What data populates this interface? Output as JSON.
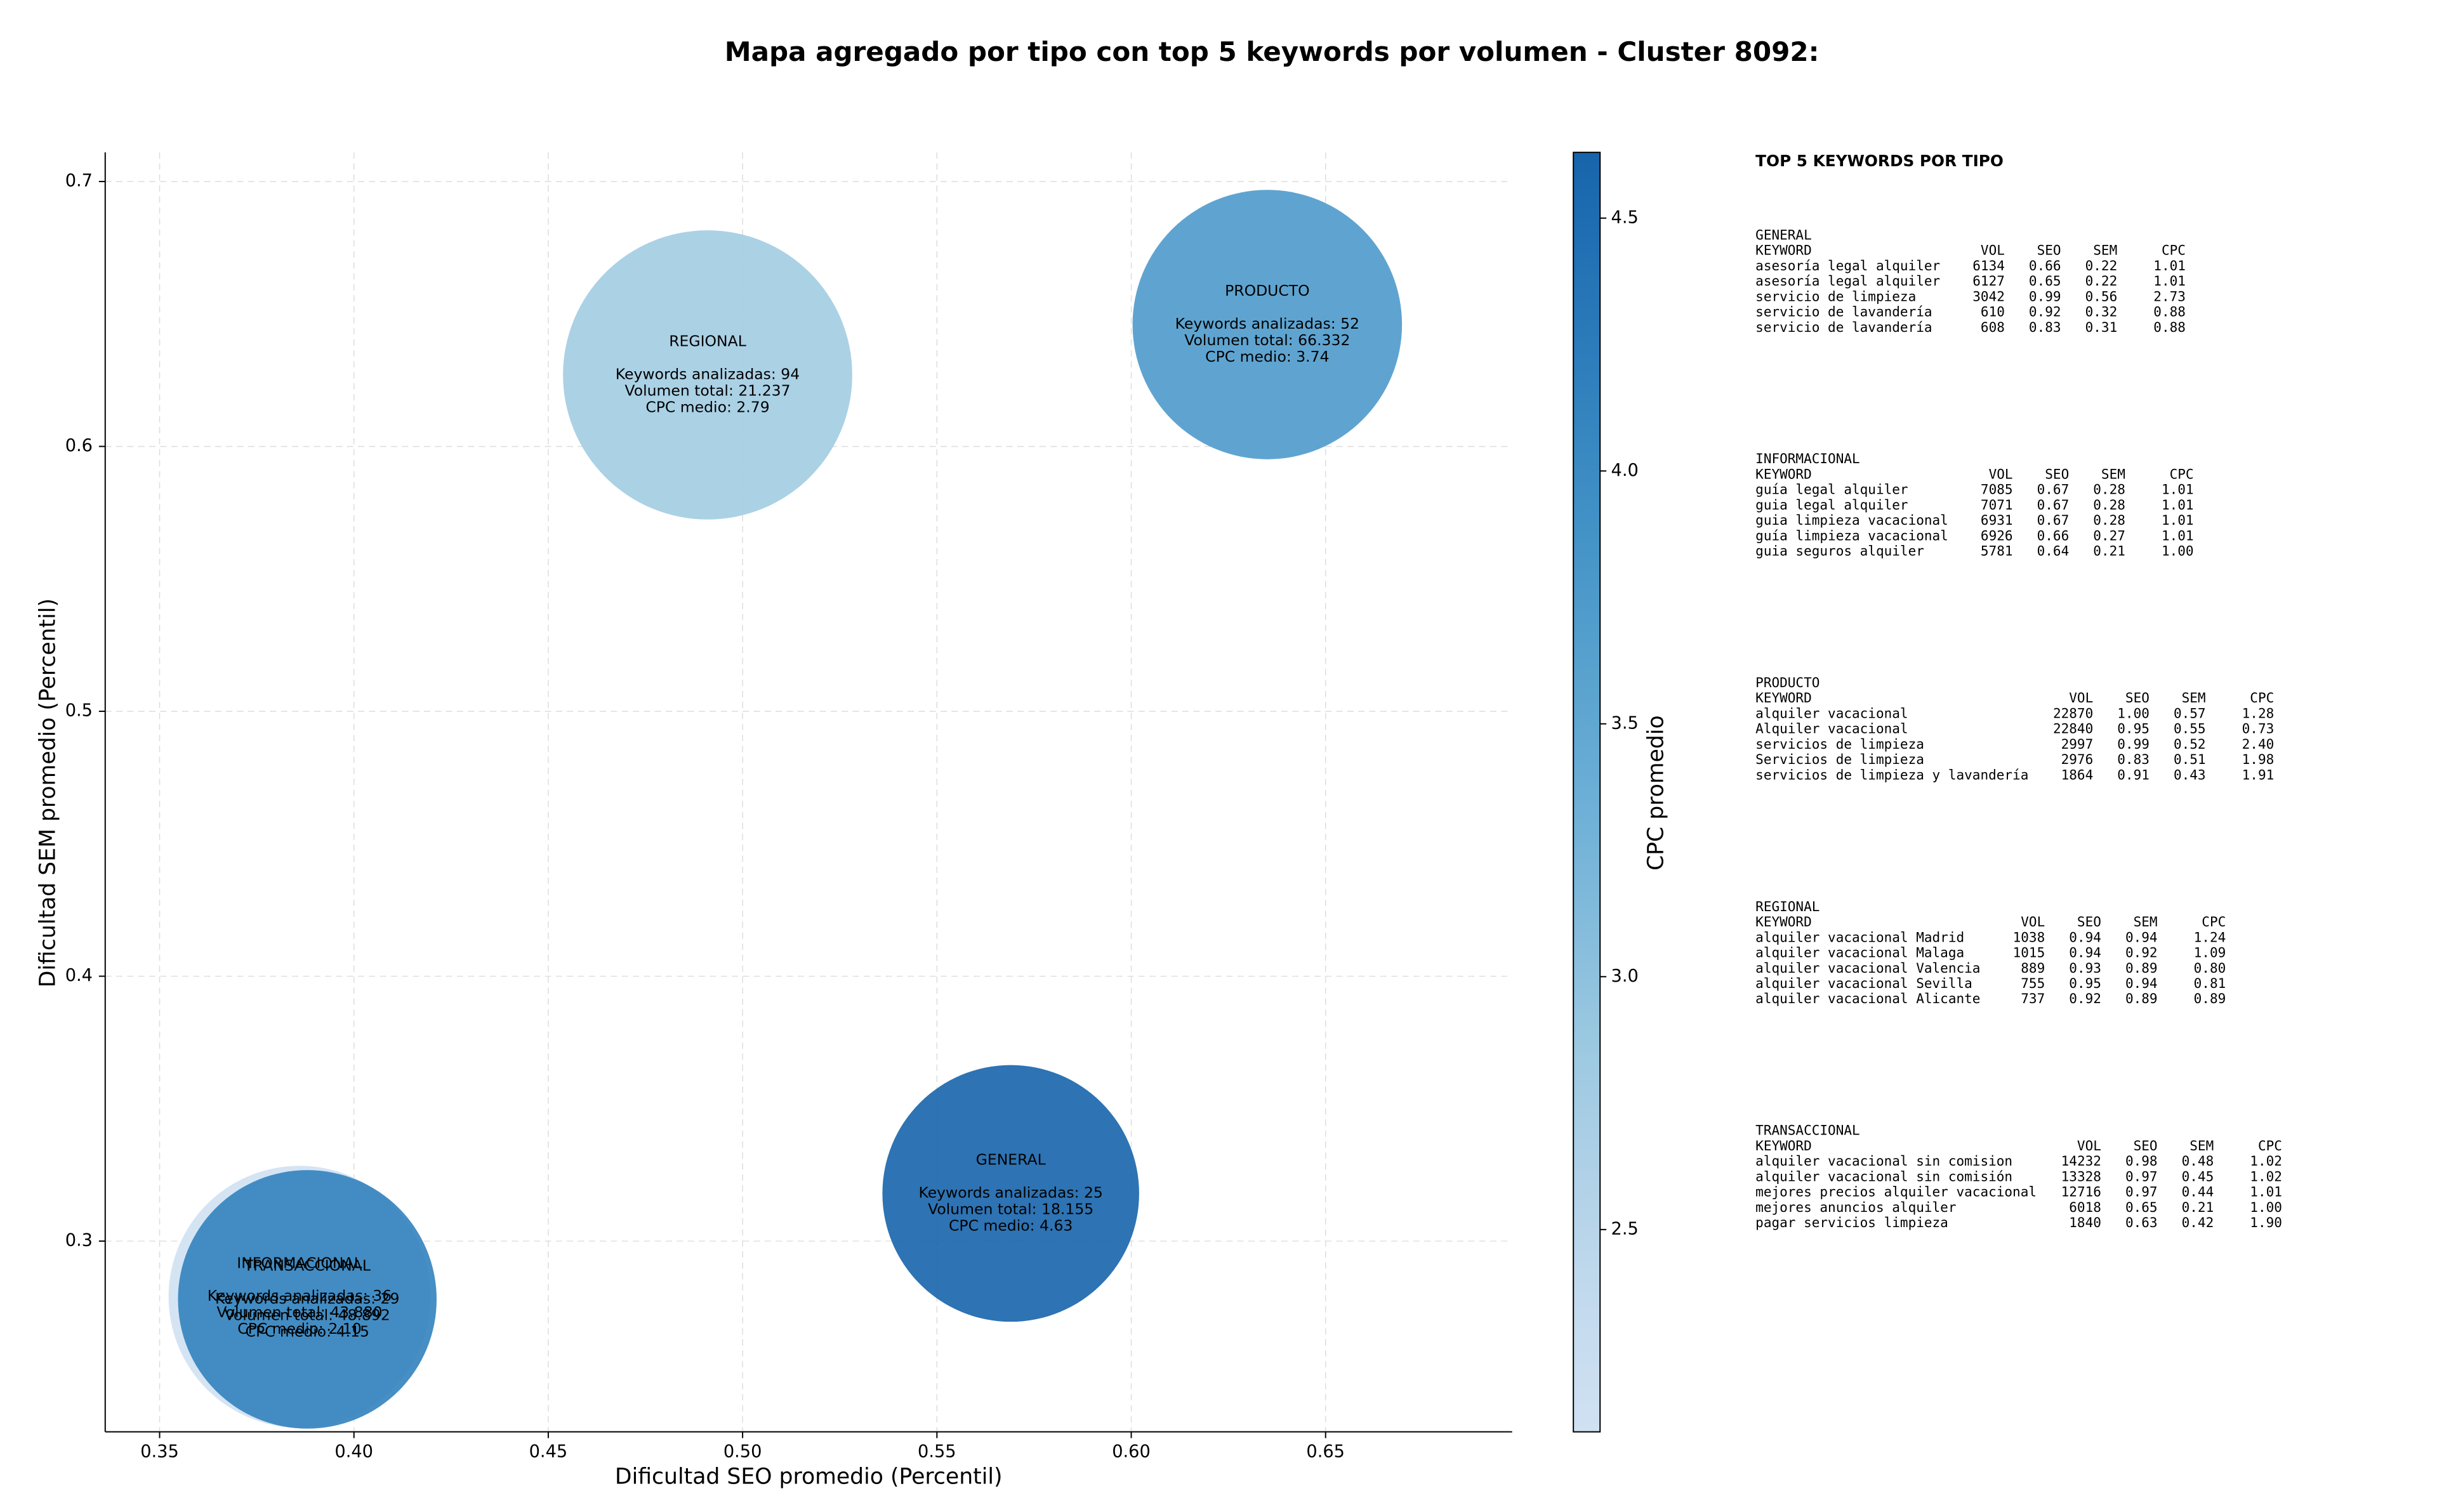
{
  "chart_data": {
    "type": "bubble",
    "title": "Mapa agregado por tipo con top 5 keywords por volumen - Cluster 8092:",
    "x_label": "Dificultad SEO promedio (Percentil)",
    "y_label": "Dificultad SEM promedio (Percentil)",
    "xlim": [
      0.336,
      0.698
    ],
    "ylim": [
      0.228,
      0.711
    ],
    "xticks": [
      0.35,
      {
        "value": 0.4,
        "label": "0.40"
      },
      0.45,
      {
        "value": 0.5,
        "label": "0.50"
      },
      0.55,
      {
        "value": 0.6,
        "label": "0.60"
      },
      0.65
    ],
    "yticks": [
      {
        "value": 0.3,
        "label": "0.3"
      },
      0.4,
      0.5,
      0.6,
      0.7
    ],
    "grid": true,
    "colormap": "Blues",
    "colorbar": {
      "label": "CPC promedio",
      "lim": [
        2.1,
        4.63
      ],
      "ticks": [
        2.5,
        {
          "value": 3,
          "label": "3.0"
        },
        3.5,
        {
          "value": 4,
          "label": "4.0"
        },
        4.5
      ]
    },
    "points": [
      {
        "name": "REGIONAL",
        "x": 0.491,
        "y": 0.627,
        "keywords": 94,
        "cpc": 2.79,
        "texts": [
          "Keywords analizadas: 94",
          "Volumen total: 21.237",
          "CPC medio: 2.79"
        ]
      },
      {
        "name": "PRODUCTO",
        "x": 0.635,
        "y": 0.646,
        "keywords": 52,
        "cpc": 3.74,
        "texts": [
          "Keywords analizadas: 52",
          "Volumen total: 66.332",
          "CPC medio: 3.74"
        ]
      },
      {
        "name": "GENERAL",
        "x": 0.569,
        "y": 0.318,
        "keywords": 25,
        "cpc": 4.63,
        "texts": [
          "Keywords analizadas: 25",
          "Volumen total: 18.155",
          "CPC medio: 4.63"
        ]
      },
      {
        "name": "INFORMACIONAL",
        "x": 0.386,
        "y": 0.279,
        "keywords": 36,
        "cpc": 2.1,
        "texts": [
          "Keywords analizadas: 36",
          "Volumen total: 43.880",
          "CPC medio: 2.10"
        ]
      },
      {
        "name": "TRANSACCIONAL",
        "x": 0.388,
        "y": 0.278,
        "keywords": 29,
        "cpc": 4.15,
        "texts": [
          "Keywords analizadas: 29",
          "Volumen total: 48.892",
          "CPC medio: 4.15"
        ]
      }
    ]
  },
  "side_panel": {
    "title": "TOP 5 KEYWORDS POR TIPO",
    "header": [
      "KEYWORD",
      "VOL",
      "SEO",
      "SEM",
      "CPC"
    ],
    "groups": [
      {
        "name": "GENERAL",
        "rows": [
          [
            "asesoría legal alquiler",
            "6134",
            "0.66",
            "0.22",
            "1.01"
          ],
          [
            "asesoría legal alquiler",
            "6127",
            "0.65",
            "0.22",
            "1.01"
          ],
          [
            "servicio de limpieza",
            "3042",
            "0.99",
            "0.56",
            "2.73"
          ],
          [
            "servicio de lavandería",
            "610",
            "0.92",
            "0.32",
            "0.88"
          ],
          [
            "servicio de lavandería",
            "608",
            "0.83",
            "0.31",
            "0.88"
          ]
        ]
      },
      {
        "name": "INFORMACIONAL",
        "rows": [
          [
            "guía legal alquiler",
            "7085",
            "0.67",
            "0.28",
            "1.01"
          ],
          [
            "guia legal alquiler",
            "7071",
            "0.67",
            "0.28",
            "1.01"
          ],
          [
            "guia limpieza vacacional",
            "6931",
            "0.67",
            "0.28",
            "1.01"
          ],
          [
            "guía limpieza vacacional",
            "6926",
            "0.66",
            "0.27",
            "1.01"
          ],
          [
            "guia seguros alquiler",
            "5781",
            "0.64",
            "0.21",
            "1.00"
          ]
        ]
      },
      {
        "name": "PRODUCTO",
        "rows": [
          [
            "alquiler vacacional",
            "22870",
            "1.00",
            "0.57",
            "1.28"
          ],
          [
            "Alquiler vacacional",
            "22840",
            "0.95",
            "0.55",
            "0.73"
          ],
          [
            "servicios de limpieza",
            "2997",
            "0.99",
            "0.52",
            "2.40"
          ],
          [
            "Servicios de limpieza",
            "2976",
            "0.83",
            "0.51",
            "1.98"
          ],
          [
            "servicios de limpieza y lavandería",
            "1864",
            "0.91",
            "0.43",
            "1.91"
          ]
        ]
      },
      {
        "name": "REGIONAL",
        "rows": [
          [
            "alquiler vacacional Madrid",
            "1038",
            "0.94",
            "0.94",
            "1.24"
          ],
          [
            "alquiler vacacional Malaga",
            "1015",
            "0.94",
            "0.92",
            "1.09"
          ],
          [
            "alquiler vacacional Valencia",
            "889",
            "0.93",
            "0.89",
            "0.80"
          ],
          [
            "alquiler vacacional Sevilla",
            "755",
            "0.95",
            "0.94",
            "0.81"
          ],
          [
            "alquiler vacacional Alicante",
            "737",
            "0.92",
            "0.89",
            "0.89"
          ]
        ]
      },
      {
        "name": "TRANSACCIONAL",
        "rows": [
          [
            "alquiler vacacional sin comision",
            "14232",
            "0.98",
            "0.48",
            "1.02"
          ],
          [
            "alquiler vacacional sin comisión",
            "13328",
            "0.97",
            "0.45",
            "1.02"
          ],
          [
            "mejores precios alquiler vacacional",
            "12716",
            "0.97",
            "0.44",
            "1.01"
          ],
          [
            "mejores anuncios alquiler",
            "6018",
            "0.65",
            "0.21",
            "1.00"
          ],
          [
            "pagar servicios limpieza",
            "1840",
            "0.63",
            "0.42",
            "1.90"
          ]
        ]
      }
    ]
  }
}
